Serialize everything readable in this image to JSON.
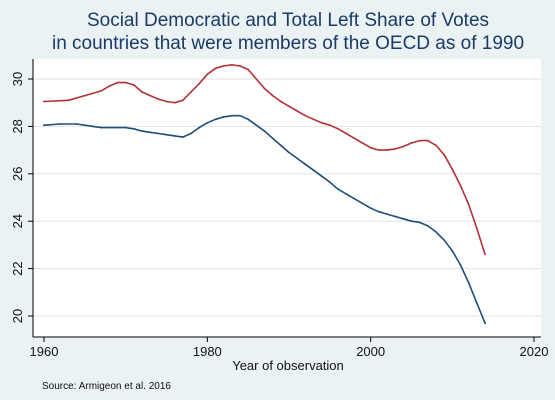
{
  "chart_data": {
    "type": "line",
    "title_lines": [
      "Social Democratic and Total Left Share of Votes",
      "in countries that were members of the OECD as of 1990"
    ],
    "xlabel": "Year of observation",
    "ylabel": "",
    "source": "Source: Armigeon et al. 2016",
    "xlim": [
      1960,
      2020
    ],
    "ylim": [
      19.5,
      31
    ],
    "x_ticks": [
      1960,
      1980,
      2000,
      2020
    ],
    "y_ticks": [
      20,
      22,
      24,
      26,
      28,
      30
    ],
    "grid": true,
    "legend": "none",
    "series": [
      {
        "color": "#b5313a",
        "x": [
          1960,
          1963,
          1965,
          1967,
          1968,
          1969,
          1970,
          1971,
          1972,
          1973,
          1974,
          1975,
          1976,
          1977,
          1978,
          1979,
          1980,
          1981,
          1982,
          1983,
          1984,
          1985,
          1986,
          1987,
          1988,
          1989,
          1990,
          1991,
          1992,
          1993,
          1994,
          1995,
          1996,
          1997,
          1998,
          1999,
          2000,
          2001,
          2002,
          2003,
          2004,
          2005,
          2006,
          2007,
          2008,
          2009,
          2010,
          2011,
          2012,
          2013,
          2014
        ],
        "values": [
          29.05,
          29.1,
          29.3,
          29.5,
          29.7,
          29.85,
          29.85,
          29.75,
          29.45,
          29.3,
          29.15,
          29.05,
          29.0,
          29.1,
          29.45,
          29.8,
          30.2,
          30.45,
          30.55,
          30.6,
          30.55,
          30.4,
          30.0,
          29.6,
          29.3,
          29.05,
          28.85,
          28.65,
          28.45,
          28.3,
          28.15,
          28.05,
          27.9,
          27.7,
          27.5,
          27.3,
          27.1,
          27.0,
          27.0,
          27.05,
          27.15,
          27.3,
          27.4,
          27.4,
          27.2,
          26.8,
          26.2,
          25.5,
          24.7,
          23.7,
          22.6
        ]
      },
      {
        "color": "#1f4e79",
        "x": [
          1960,
          1962,
          1964,
          1965,
          1966,
          1967,
          1968,
          1969,
          1970,
          1971,
          1972,
          1973,
          1974,
          1975,
          1976,
          1977,
          1978,
          1979,
          1980,
          1981,
          1982,
          1983,
          1984,
          1985,
          1986,
          1987,
          1988,
          1989,
          1990,
          1991,
          1992,
          1993,
          1994,
          1995,
          1996,
          1997,
          1998,
          1999,
          2000,
          2001,
          2002,
          2003,
          2004,
          2005,
          2006,
          2007,
          2008,
          2009,
          2010,
          2011,
          2012,
          2013,
          2014
        ],
        "values": [
          28.05,
          28.1,
          28.1,
          28.05,
          28.0,
          27.95,
          27.95,
          27.95,
          27.95,
          27.9,
          27.8,
          27.75,
          27.7,
          27.65,
          27.6,
          27.55,
          27.7,
          27.95,
          28.15,
          28.3,
          28.4,
          28.45,
          28.45,
          28.3,
          28.05,
          27.8,
          27.5,
          27.2,
          26.9,
          26.65,
          26.4,
          26.15,
          25.9,
          25.65,
          25.35,
          25.15,
          24.95,
          24.75,
          24.55,
          24.4,
          24.3,
          24.2,
          24.1,
          24.0,
          23.95,
          23.8,
          23.55,
          23.2,
          22.75,
          22.15,
          21.4,
          20.55,
          19.7
        ]
      }
    ]
  }
}
